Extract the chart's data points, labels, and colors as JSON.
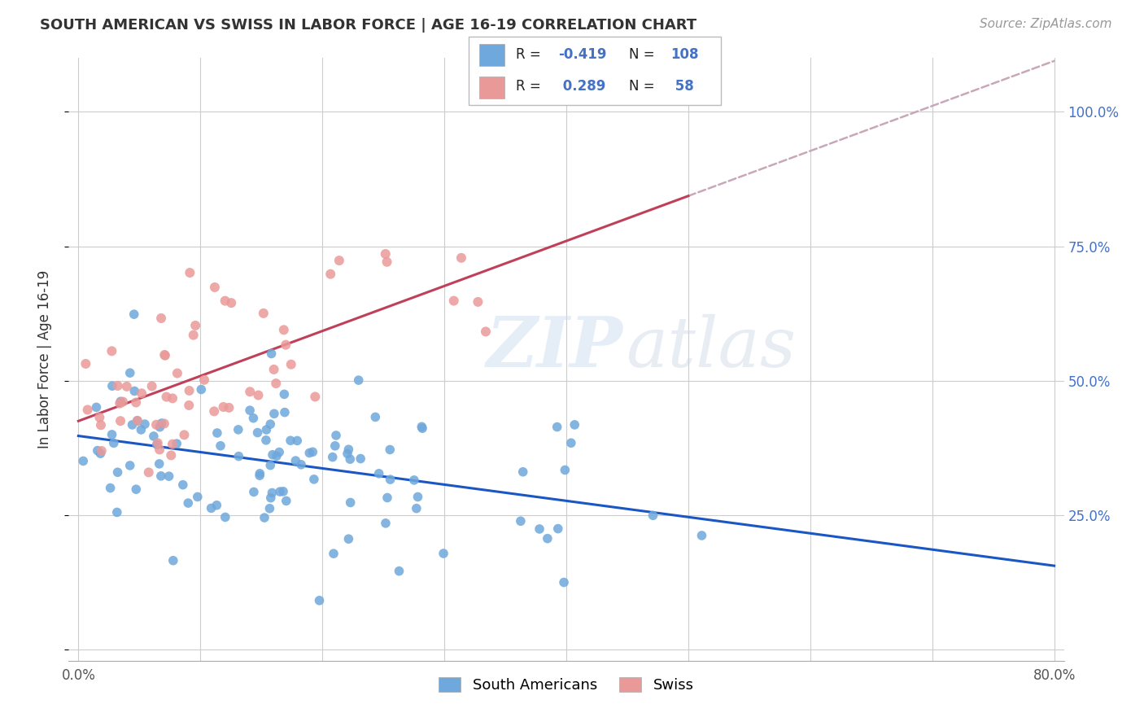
{
  "title": "SOUTH AMERICAN VS SWISS IN LABOR FORCE | AGE 16-19 CORRELATION CHART",
  "source": "Source: ZipAtlas.com",
  "ylabel": "In Labor Force | Age 16-19",
  "blue_color": "#6fa8dc",
  "pink_color": "#ea9999",
  "blue_line_color": "#1a56c4",
  "pink_line_color": "#c0405a",
  "pink_dash_color": "#c8a8b8",
  "watermark_zip": "ZIP",
  "watermark_atlas": "atlas",
  "blue_n": 108,
  "pink_n": 58,
  "blue_R": -0.419,
  "pink_R": 0.289
}
